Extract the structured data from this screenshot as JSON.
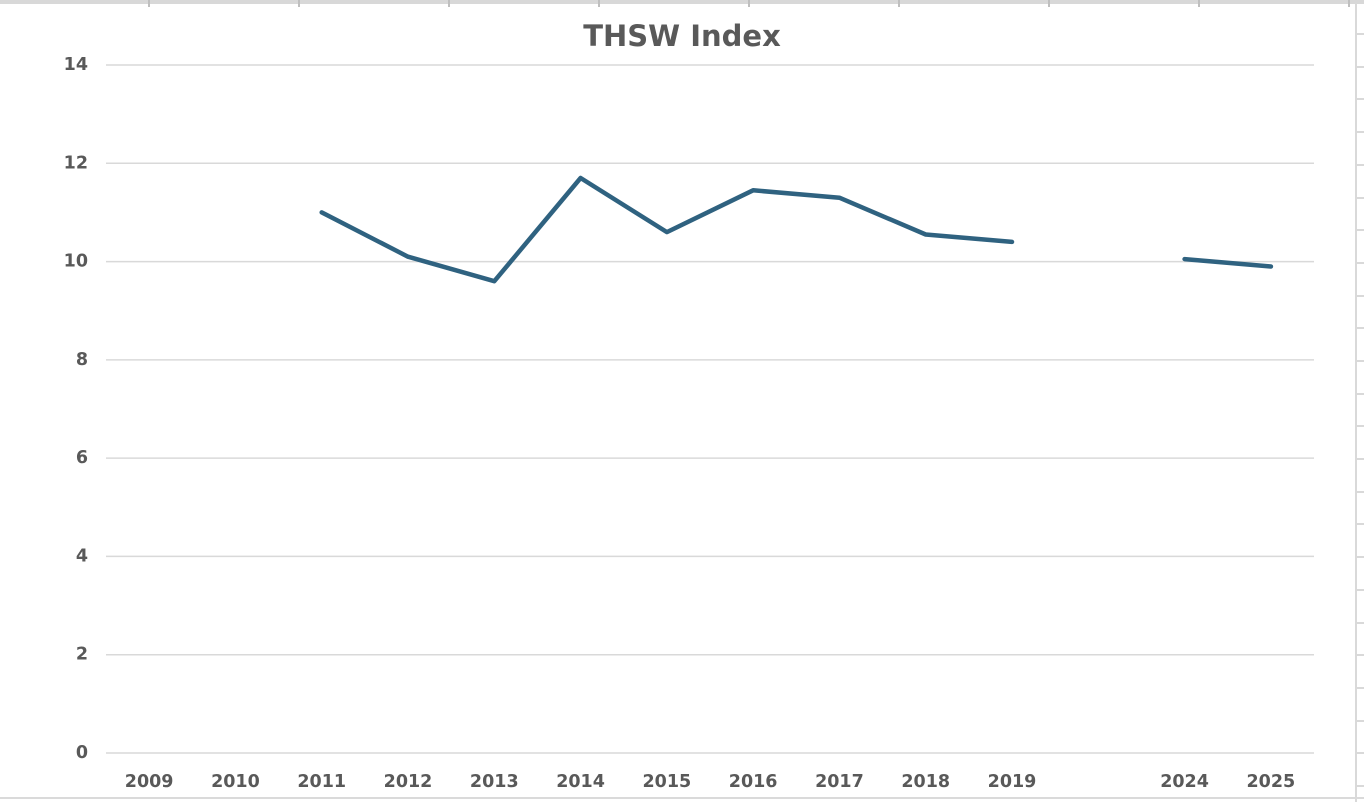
{
  "chart_data": {
    "type": "line",
    "title": "THSW Index",
    "xlabel": "",
    "ylabel": "",
    "categories": [
      "2009",
      "2010",
      "2011",
      "2012",
      "2013",
      "2014",
      "2015",
      "2016",
      "2017",
      "2018",
      "2019",
      "",
      "2024",
      "2025"
    ],
    "values": [
      null,
      null,
      11.0,
      10.1,
      9.6,
      11.7,
      10.6,
      11.45,
      11.3,
      10.55,
      10.4,
      null,
      10.05,
      9.9
    ],
    "ylim": [
      0,
      14
    ],
    "yticks": [
      0,
      2,
      4,
      6,
      8,
      10,
      12,
      14
    ],
    "grid": "horizontal",
    "legend": "none",
    "line_color": "#2F6280",
    "gridline_color": "#D9D9D9",
    "text_color": "#595959"
  }
}
